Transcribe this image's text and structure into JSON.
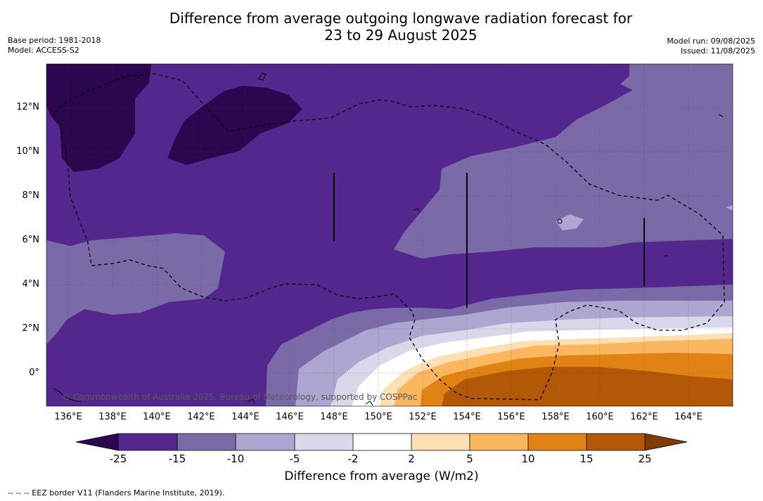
{
  "title": {
    "line1": "Difference from average outgoing longwave radiation forecast for",
    "line2": "23 to 29 August 2025"
  },
  "meta_left": {
    "base_period": "Base period: 1981-2018",
    "model": "Model: ACCESS-S2"
  },
  "meta_right": {
    "model_run": "Model run: 09/08/2025",
    "issued": "Issued: 11/08/2025"
  },
  "map": {
    "lat_labels": [
      "12°N",
      "10°N",
      "8°N",
      "6°N",
      "4°N",
      "2°N",
      "0°"
    ],
    "lon_labels": [
      "136°E",
      "138°E",
      "140°E",
      "142°E",
      "144°E",
      "146°E",
      "148°E",
      "150°E",
      "152°E",
      "154°E",
      "156°E",
      "158°E",
      "160°E",
      "162°E",
      "164°E"
    ],
    "copyright": "© Commonwealth of Australia 2025, Bureau of Meteorology, supported by COSPPac"
  },
  "colorbar": {
    "tick_labels": [
      "-25",
      "-15",
      "-10",
      "-5",
      "-2",
      "2",
      "5",
      "10",
      "15",
      "25"
    ],
    "colors": {
      "lt-25": "#2d0650",
      "-25_-15": "#54278f",
      "-15_-10": "#7b6aa8",
      "-10_-5": "#aca6d0",
      "-5_-2": "#d9d8eb",
      "-2_2": "#ffffff",
      "2_5": "#fddfb4",
      "5_10": "#fbb660",
      "10_15": "#e08214",
      "15_25": "#b35806",
      "gt25": "#7f3b08"
    },
    "title": "Difference from average (W/m2)"
  },
  "footnote": "--  --  -- EEZ border V11 (Flanders Marine Institute, 2019)."
}
